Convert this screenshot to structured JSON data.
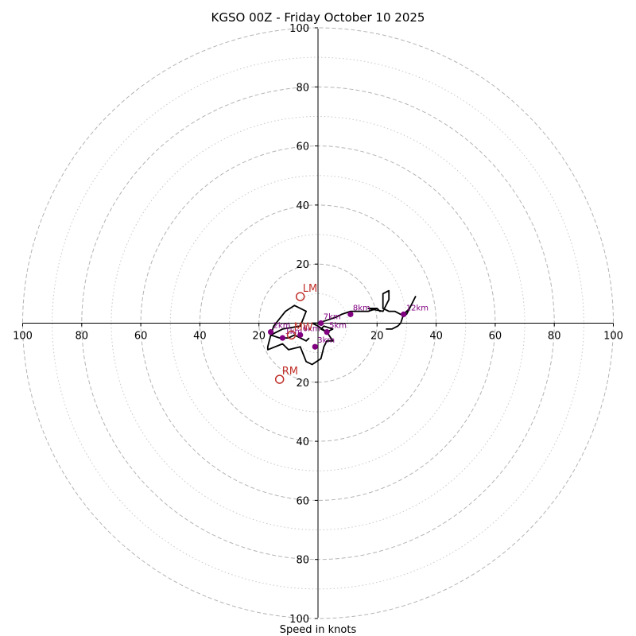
{
  "chart_data": {
    "type": "hodograph",
    "title": "KGSO 00Z - Friday October 10 2025",
    "xlabel": "Speed in knots",
    "range": [
      -100,
      100
    ],
    "ring_major": [
      20,
      40,
      60,
      80,
      100
    ],
    "ring_minor": [
      10,
      30,
      50,
      70,
      90
    ],
    "x_ticks": [
      {
        "value": -100,
        "label": "100"
      },
      {
        "value": -80,
        "label": "80"
      },
      {
        "value": -60,
        "label": "60"
      },
      {
        "value": -40,
        "label": "40"
      },
      {
        "value": -20,
        "label": "20"
      },
      {
        "value": 20,
        "label": "20"
      },
      {
        "value": 40,
        "label": "40"
      },
      {
        "value": 60,
        "label": "60"
      },
      {
        "value": 80,
        "label": "80"
      },
      {
        "value": 100,
        "label": "100"
      }
    ],
    "y_ticks": [
      {
        "value": 100,
        "label": "100"
      },
      {
        "value": 80,
        "label": "80"
      },
      {
        "value": 60,
        "label": "60"
      },
      {
        "value": 40,
        "label": "40"
      },
      {
        "value": 20,
        "label": "20"
      },
      {
        "value": -20,
        "label": "20"
      },
      {
        "value": -40,
        "label": "40"
      },
      {
        "value": -60,
        "label": "60"
      },
      {
        "value": -80,
        "label": "80"
      },
      {
        "value": -100,
        "label": "100"
      }
    ],
    "trace_uv": [
      [
        -3,
        -5
      ],
      [
        -4,
        -6
      ],
      [
        -6,
        -5
      ],
      [
        -8,
        -4
      ],
      [
        -10,
        -5
      ],
      [
        -13,
        -5
      ],
      [
        -16,
        -4
      ],
      [
        -15,
        -1
      ],
      [
        -11,
        4
      ],
      [
        -8,
        6
      ],
      [
        -4,
        4
      ],
      [
        -6,
        -1
      ],
      [
        -12,
        -2
      ],
      [
        -16,
        -4
      ],
      [
        -17,
        -8
      ],
      [
        -17,
        -9
      ],
      [
        -12,
        -7
      ],
      [
        -10,
        -9
      ],
      [
        -6,
        -8
      ],
      [
        -4,
        -13
      ],
      [
        -2,
        -14
      ],
      [
        1,
        -12
      ],
      [
        2,
        -8
      ],
      [
        3,
        -6
      ],
      [
        5,
        -6
      ],
      [
        3,
        -3
      ],
      [
        1,
        -2
      ],
      [
        2,
        -1
      ],
      [
        5,
        -2
      ],
      [
        3,
        -3
      ],
      [
        0,
        -1
      ],
      [
        -2,
        0
      ],
      [
        0,
        0
      ],
      [
        3,
        1
      ],
      [
        6,
        2
      ],
      [
        8,
        3
      ],
      [
        11,
        4
      ],
      [
        15,
        4
      ],
      [
        17,
        4
      ],
      [
        20,
        5
      ],
      [
        21,
        4
      ],
      [
        20,
        5
      ],
      [
        17,
        5
      ],
      [
        22,
        4
      ],
      [
        24,
        8
      ],
      [
        24,
        11
      ],
      [
        22,
        10
      ],
      [
        22,
        6
      ],
      [
        22,
        5
      ],
      [
        24,
        4
      ],
      [
        26,
        4
      ],
      [
        28,
        3
      ],
      [
        30,
        3
      ],
      [
        31,
        5
      ],
      [
        32,
        7
      ],
      [
        33,
        9
      ],
      [
        31,
        5
      ],
      [
        29,
        3
      ],
      [
        28,
        0
      ],
      [
        27,
        -1
      ],
      [
        25,
        -2
      ],
      [
        23,
        -2
      ]
    ],
    "height_markers": [
      {
        "label": "1km",
        "u": -12,
        "v": -5
      },
      {
        "label": "2km",
        "u": -16,
        "v": -3
      },
      {
        "label": "3km",
        "u": -1,
        "v": -8
      },
      {
        "label": "5km",
        "u": 3,
        "v": -3
      },
      {
        "label": "6km",
        "u": -6,
        "v": -4
      },
      {
        "label": "7km",
        "u": 1,
        "v": 0
      },
      {
        "label": "8km",
        "u": 11,
        "v": 3
      },
      {
        "label": "12km",
        "u": 29,
        "v": 3
      }
    ],
    "storm_motion": [
      {
        "label": "LM",
        "u": -6,
        "v": 9
      },
      {
        "label": "RM",
        "u": -13,
        "v": -19
      },
      {
        "label": "MW",
        "u": -9,
        "v": -4
      }
    ]
  }
}
